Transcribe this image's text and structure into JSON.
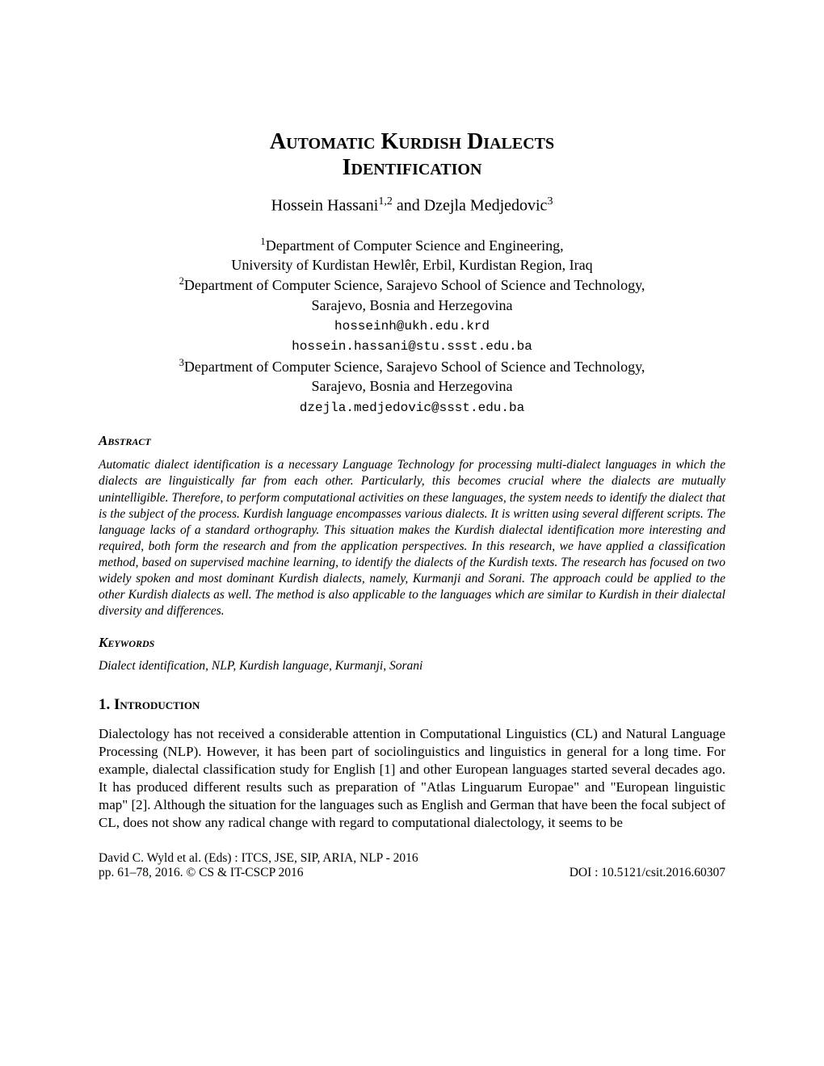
{
  "title_line1": "Automatic Kurdish Dialects",
  "title_line2": "Identification",
  "authors": {
    "author1": "Hossein Hassani",
    "author1_sup": "1,2",
    "conjunction": " and ",
    "author2": "Dzejla Medjedovic",
    "author2_sup": "3"
  },
  "affiliations": {
    "sup1": "1",
    "aff1_line1": "Department of Computer Science and Engineering,",
    "aff1_line2": "University of Kurdistan Hewlêr, Erbil, Kurdistan Region, Iraq",
    "sup2": "2",
    "aff2_line1": "Department of Computer Science, Sarajevo School of Science and Technology,",
    "aff2_line2": "Sarajevo, Bosnia and Herzegovina",
    "email1": "hosseinh@ukh.edu.krd",
    "email2": "hossein.hassani@stu.ssst.edu.ba",
    "sup3": "3",
    "aff3_line1": "Department of Computer Science, Sarajevo School of Science and Technology,",
    "aff3_line2": "Sarajevo, Bosnia and Herzegovina",
    "email3": "dzejla.medjedovic@ssst.edu.ba"
  },
  "abstract": {
    "label": "Abstract",
    "text": "Automatic dialect identification is a necessary Language Technology for processing multi-dialect languages in which the dialects are linguistically far from each other. Particularly, this becomes crucial where the dialects are mutually unintelligible. Therefore, to perform computational activities on these languages, the system needs to identify the dialect that is the subject of the process. Kurdish language encompasses various dialects. It is written using several different scripts. The language lacks of a standard orthography. This situation makes the Kurdish dialectal identification more interesting and required, both form the research and from the application perspectives. In this research, we have applied a classification method, based on supervised machine learning, to identify the dialects of the Kurdish texts. The research has focused on two widely spoken and most dominant Kurdish dialects, namely, Kurmanji and Sorani. The approach could be applied to the other Kurdish dialects as well. The method is also applicable to the languages which are similar to Kurdish in their dialectal diversity and differences."
  },
  "keywords": {
    "label": "Keywords",
    "text": "Dialect identification, NLP, Kurdish language, Kurmanji, Sorani"
  },
  "section1": {
    "heading": "1. Introduction",
    "text": "Dialectology has not received a considerable attention in Computational Linguistics (CL) and Natural Language Processing (NLP). However, it has been part of sociolinguistics and linguistics in general for a long time.  For example, dialectal classification study for English [1] and other European languages started several decades ago. It has produced different results such as preparation of \"Atlas Linguarum Europae\" and \"European linguistic map\" [2].  Although the situation for the languages such as English and German that have been the focal subject of CL, does not show any radical change with regard to computational dialectology, it seems to be"
  },
  "footer": {
    "line1": "David C. Wyld et al. (Eds) : ITCS, JSE, SIP, ARIA, NLP - 2016",
    "line2_left": "pp. 61–78, 2016. © CS & IT-CSCP 2016",
    "line2_right": "DOI : 10.5121/csit.2016.60307"
  }
}
